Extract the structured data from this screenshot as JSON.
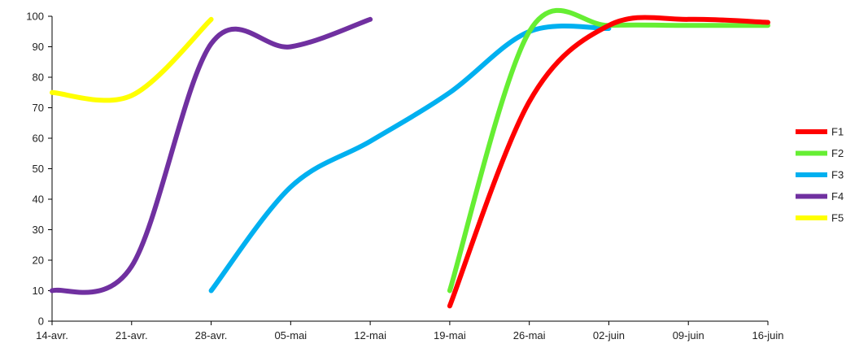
{
  "chart_data": {
    "type": "line",
    "title": "",
    "xlabel": "",
    "ylabel": "",
    "x_ticks": [
      "14-avr.",
      "21-avr.",
      "28-avr.",
      "05-mai",
      "12-mai",
      "19-mai",
      "26-mai",
      "02-juin",
      "09-juin",
      "16-juin"
    ],
    "y_ticks": [
      "0",
      "10",
      "20",
      "30",
      "40",
      "50",
      "60",
      "70",
      "80",
      "90",
      "100"
    ],
    "xlim": [
      "14-avr.",
      "16-juin"
    ],
    "ylim": [
      0,
      100
    ],
    "grid": false,
    "legend_position": "right",
    "series": [
      {
        "name": "F1",
        "color": "#ff0000",
        "points": [
          {
            "x": "19-mai",
            "y": 5
          },
          {
            "x": "26-mai",
            "y": 72
          },
          {
            "x": "02-juin",
            "y": 97
          },
          {
            "x": "09-juin",
            "y": 99
          },
          {
            "x": "16-juin",
            "y": 98
          }
        ]
      },
      {
        "name": "F2",
        "color": "#66ee33",
        "points": [
          {
            "x": "19-mai",
            "y": 10
          },
          {
            "x": "26-mai",
            "y": 95
          },
          {
            "x": "02-juin",
            "y": 97
          },
          {
            "x": "09-juin",
            "y": 97
          },
          {
            "x": "16-juin",
            "y": 97
          }
        ]
      },
      {
        "name": "F3",
        "color": "#00b0f0",
        "points": [
          {
            "x": "28-avr.",
            "y": 10
          },
          {
            "x": "05-mai",
            "y": 44
          },
          {
            "x": "12-mai",
            "y": 59
          },
          {
            "x": "19-mai",
            "y": 75
          },
          {
            "x": "26-mai",
            "y": 95
          },
          {
            "x": "02-juin",
            "y": 96
          }
        ]
      },
      {
        "name": "F4",
        "color": "#7030a0",
        "points": [
          {
            "x": "14-avr.",
            "y": 10
          },
          {
            "x": "21-avr.",
            "y": 18
          },
          {
            "x": "28-avr.",
            "y": 91
          },
          {
            "x": "05-mai",
            "y": 90
          },
          {
            "x": "12-mai",
            "y": 99
          }
        ]
      },
      {
        "name": "F5",
        "color": "#ffff00",
        "points": [
          {
            "x": "14-avr.",
            "y": 75
          },
          {
            "x": "21-avr.",
            "y": 74
          },
          {
            "x": "28-avr.",
            "y": 99
          }
        ]
      }
    ]
  }
}
